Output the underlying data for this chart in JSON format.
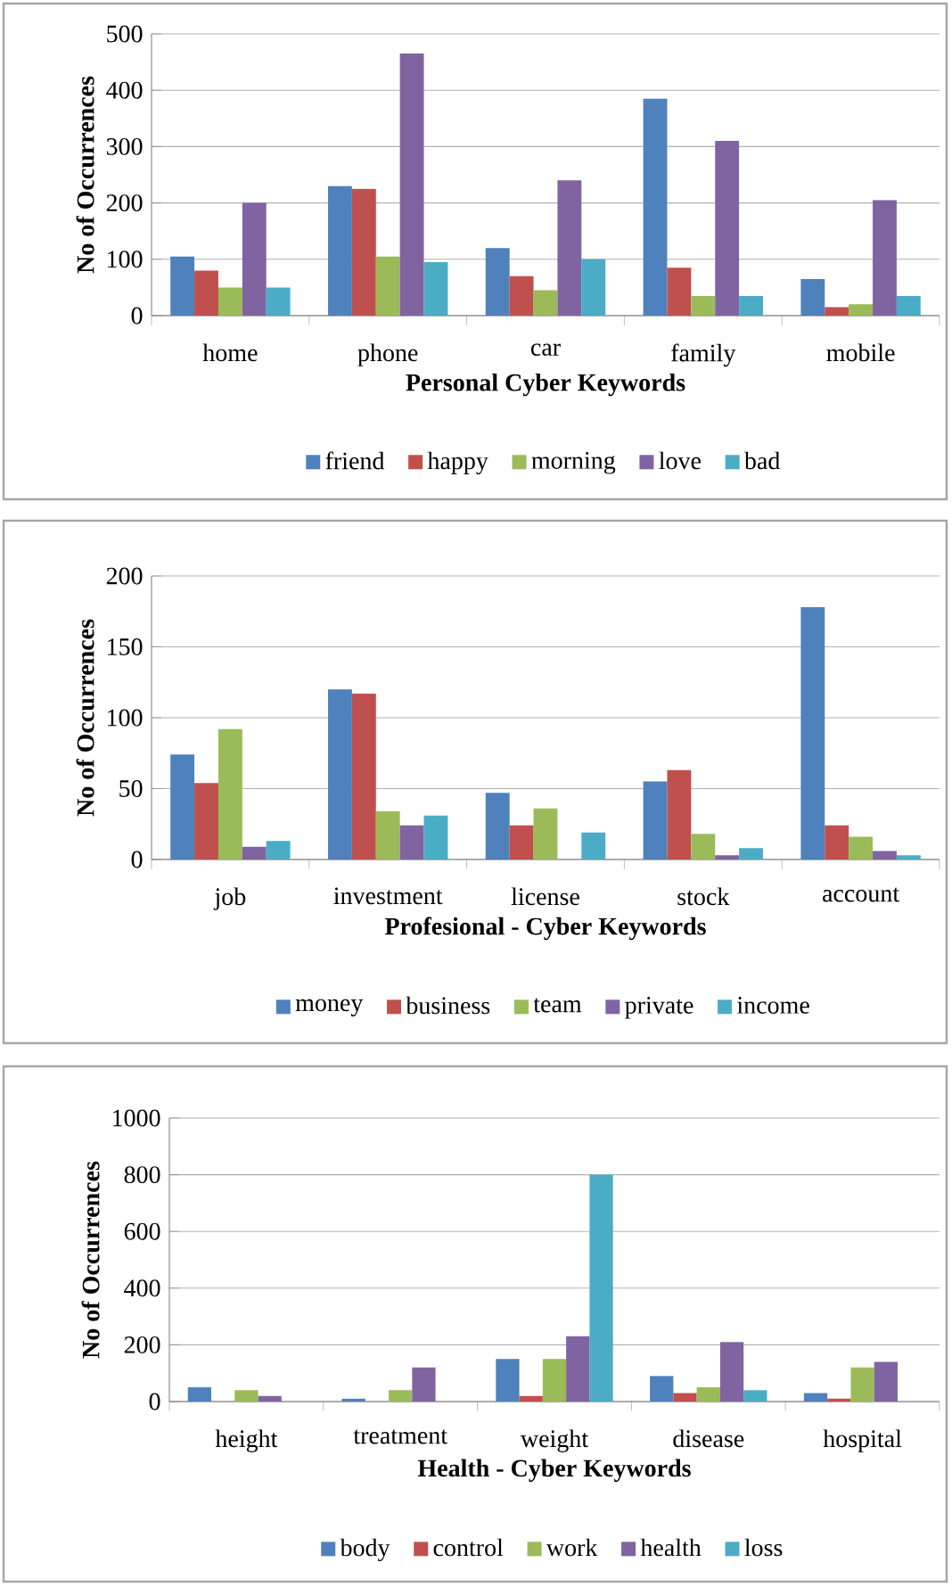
{
  "chart_data": [
    {
      "type": "bar",
      "xlabel": "Personal Cyber Keywords",
      "ylabel": "No of Occurrences",
      "categories": [
        "home",
        "phone",
        "car",
        "family",
        "mobile"
      ],
      "series": [
        {
          "name": "friend",
          "color": "#4f81bd",
          "values": [
            105,
            230,
            120,
            385,
            65
          ]
        },
        {
          "name": "happy",
          "color": "#c0504d",
          "values": [
            80,
            225,
            70,
            85,
            15
          ]
        },
        {
          "name": "morning",
          "color": "#9bbb59",
          "values": [
            50,
            105,
            45,
            35,
            20
          ]
        },
        {
          "name": "love",
          "color": "#8064a2",
          "values": [
            200,
            465,
            240,
            310,
            205
          ]
        },
        {
          "name": "bad",
          "color": "#4bacc6",
          "values": [
            50,
            95,
            100,
            35,
            35
          ]
        }
      ],
      "ylim": [
        0,
        500
      ],
      "yticks": [
        0,
        100,
        200,
        300,
        400,
        500
      ],
      "grid": "y",
      "legend": "bottom"
    },
    {
      "type": "bar",
      "xlabel": "Profesional - Cyber Keywords",
      "ylabel": "No of Occurrences",
      "categories": [
        "job",
        "investment",
        "license",
        "stock",
        "account"
      ],
      "series": [
        {
          "name": "money",
          "color": "#4f81bd",
          "values": [
            74,
            120,
            47,
            55,
            178
          ]
        },
        {
          "name": "business",
          "color": "#c0504d",
          "values": [
            54,
            117,
            24,
            63,
            24
          ]
        },
        {
          "name": "team",
          "color": "#9bbb59",
          "values": [
            92,
            34,
            36,
            18,
            16
          ]
        },
        {
          "name": "private",
          "color": "#8064a2",
          "values": [
            9,
            24,
            0,
            3,
            6
          ]
        },
        {
          "name": "income",
          "color": "#4bacc6",
          "values": [
            13,
            31,
            19,
            8,
            3
          ]
        }
      ],
      "ylim": [
        0,
        200
      ],
      "yticks": [
        0,
        50,
        100,
        150,
        200
      ],
      "grid": "y",
      "legend": "bottom"
    },
    {
      "type": "bar",
      "xlabel": "Health - Cyber Keywords",
      "ylabel": "No of Occurrences",
      "categories": [
        "height",
        "treatment",
        "weight",
        "disease",
        "hospital"
      ],
      "series": [
        {
          "name": "body",
          "color": "#4f81bd",
          "values": [
            50,
            10,
            150,
            90,
            30
          ]
        },
        {
          "name": "control",
          "color": "#c0504d",
          "values": [
            0,
            0,
            20,
            30,
            10
          ]
        },
        {
          "name": "work",
          "color": "#9bbb59",
          "values": [
            40,
            40,
            150,
            50,
            120
          ]
        },
        {
          "name": "health",
          "color": "#8064a2",
          "values": [
            20,
            120,
            230,
            210,
            140
          ]
        },
        {
          "name": "loss",
          "color": "#4bacc6",
          "values": [
            0,
            0,
            800,
            40,
            0
          ]
        }
      ],
      "ylim": [
        0,
        1000
      ],
      "yticks": [
        0,
        200,
        400,
        600,
        800,
        1000
      ],
      "grid": "y",
      "legend": "bottom"
    }
  ]
}
